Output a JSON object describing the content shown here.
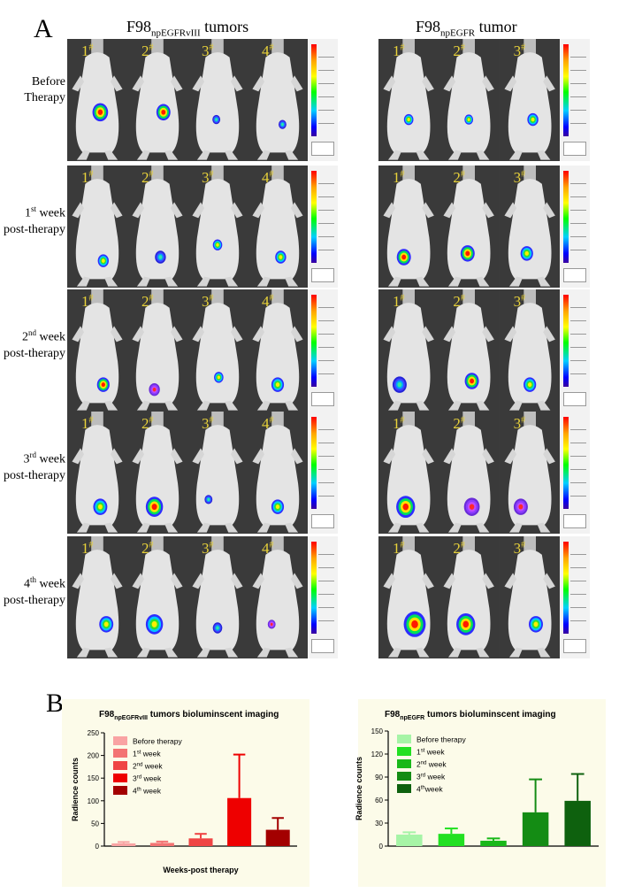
{
  "panel_a": {
    "letter": "A",
    "left_group": {
      "title_main": "F98",
      "title_sub": "npEGFRvIII",
      "title_tail": " tumors",
      "mouse_count": 4
    },
    "right_group": {
      "title_main": "F98",
      "title_sub": "npEGFR",
      "title_tail": " tumor",
      "mouse_count": 3
    },
    "mouse_labels": [
      "1",
      "2",
      "3",
      "4"
    ],
    "mouse_label_suffix": "#",
    "rows": [
      {
        "lines": [
          {
            "a": "Before",
            "sup": "",
            "b": ""
          },
          {
            "a": "Therapy",
            "sup": "",
            "b": ""
          }
        ]
      },
      {
        "lines": [
          {
            "a": "1",
            "sup": "st",
            "b": " week"
          },
          {
            "a": "post-therapy",
            "sup": "",
            "b": ""
          }
        ]
      },
      {
        "lines": [
          {
            "a": "2",
            "sup": "nd",
            "b": " week"
          },
          {
            "a": "post-therapy",
            "sup": "",
            "b": ""
          }
        ]
      },
      {
        "lines": [
          {
            "a": "3",
            "sup": "rd",
            "b": " week"
          },
          {
            "a": "post-therapy",
            "sup": "",
            "b": ""
          }
        ]
      },
      {
        "lines": [
          {
            "a": "4",
            "sup": "th",
            "b": " week"
          },
          {
            "a": "post-therapy",
            "sup": "",
            "b": ""
          }
        ]
      }
    ]
  },
  "panel_b": {
    "letter": "B"
  },
  "chart_data": [
    {
      "type": "bar",
      "title_main": "F98",
      "title_sub": "npEGFRvIII",
      "title_tail": " tumors bioluminscent imaging",
      "ylabel": "Radience counts",
      "xlabel": "Weeks-post therapy",
      "ylim": [
        0,
        250
      ],
      "yticks": [
        0,
        50,
        100,
        150,
        200,
        250
      ],
      "categories": [
        "Before therapy",
        "1st week",
        "2nd week",
        "3rd week",
        "4th week"
      ],
      "legend": [
        {
          "a": "Before therapy",
          "sup": "",
          "b": ""
        },
        {
          "a": "1",
          "sup": "st",
          "b": " week"
        },
        {
          "a": "2",
          "sup": "nd",
          "b": " week"
        },
        {
          "a": "3",
          "sup": "rd",
          "b": " week"
        },
        {
          "a": "4",
          "sup": "th",
          "b": " week"
        }
      ],
      "values": [
        6,
        7,
        17,
        106,
        36
      ],
      "errors": [
        3,
        3,
        10,
        96,
        26
      ],
      "colors": [
        "#f9a3a3",
        "#f37373",
        "#ef4444",
        "#ee0000",
        "#a30000"
      ],
      "legend_colors": [
        "#f9a3a3",
        "#f37373",
        "#ef4444",
        "#ee0000",
        "#a30000"
      ],
      "legend_position": "top-left",
      "grid": false
    },
    {
      "type": "bar",
      "title_main": "F98",
      "title_sub": "npEGFR",
      "title_tail": " tumors bioluminscent imaging",
      "ylabel": "Radience counts",
      "xlabel": "",
      "ylim": [
        0,
        150
      ],
      "yticks": [
        0,
        30,
        60,
        90,
        120,
        150
      ],
      "categories": [
        "Before therapy",
        "1st week",
        "2nd week",
        "3rd week",
        "4th week"
      ],
      "legend": [
        {
          "a": "Before therapy",
          "sup": "",
          "b": ""
        },
        {
          "a": "1",
          "sup": "st",
          "b": " week"
        },
        {
          "a": "2",
          "sup": "nd",
          "b": " week"
        },
        {
          "a": "3",
          "sup": "rd",
          "b": " week"
        },
        {
          "a": "4",
          "sup": "th",
          "b": "week"
        }
      ],
      "values": [
        15,
        16,
        7,
        44,
        59
      ],
      "errors": [
        3,
        7,
        3,
        43,
        35
      ],
      "colors": [
        "#a6f4a6",
        "#22e022",
        "#19b819",
        "#148c14",
        "#0e610e"
      ],
      "legend_colors": [
        "#a6f4a6",
        "#22e022",
        "#19b819",
        "#148c14",
        "#0e610e"
      ],
      "legend_position": "top-left",
      "grid": false
    }
  ]
}
